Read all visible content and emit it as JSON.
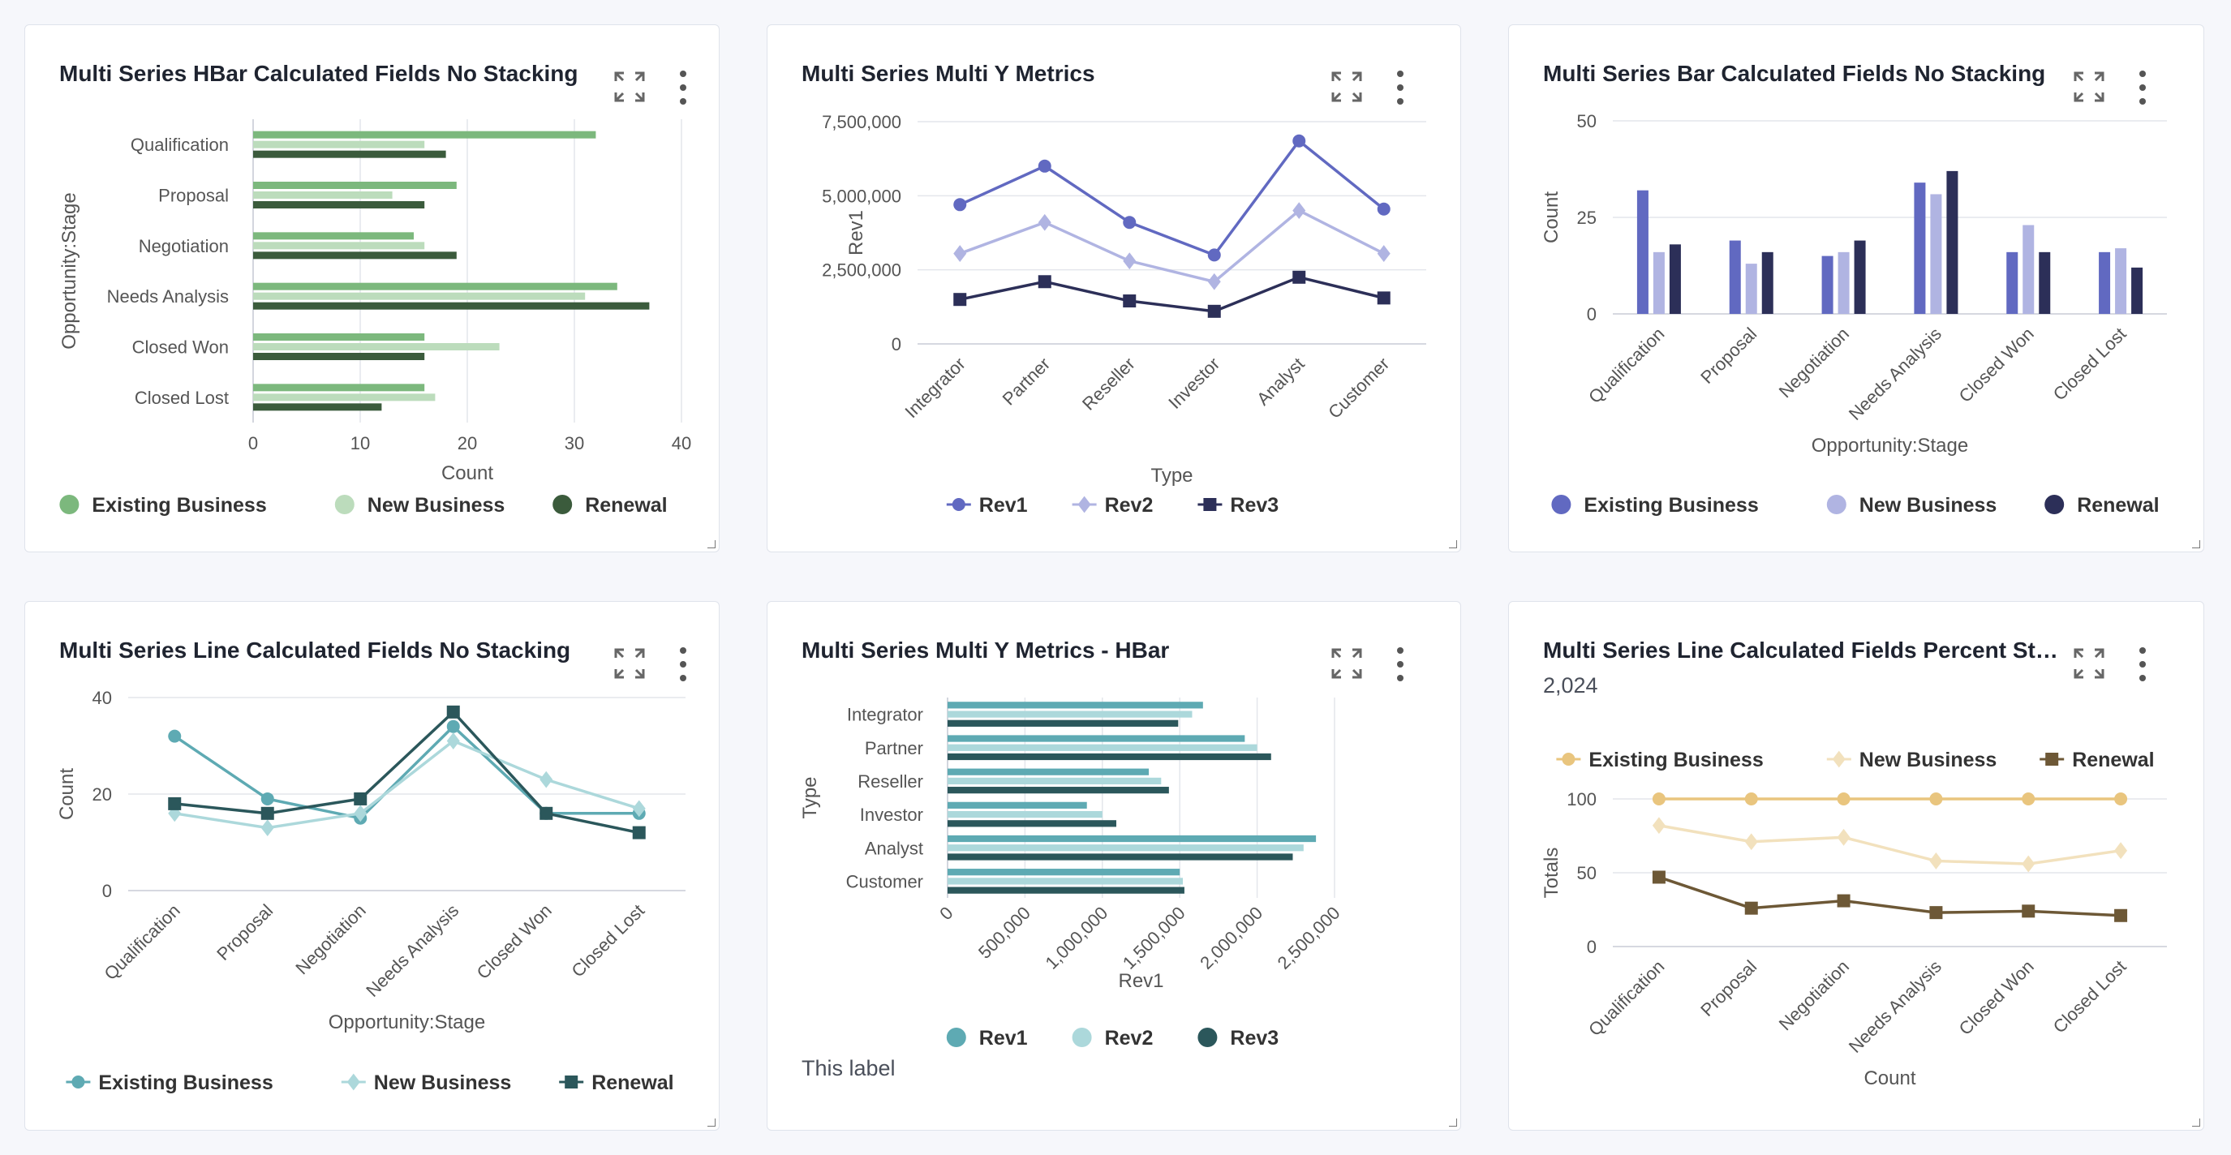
{
  "cards": [
    {
      "title": "Multi Series HBar Calculated Fields No Stacking",
      "chart_data": {
        "type": "bar",
        "orientation": "horizontal",
        "categories": [
          "Qualification",
          "Proposal",
          "Negotiation",
          "Needs Analysis",
          "Closed Won",
          "Closed Lost"
        ],
        "series": [
          {
            "name": "Existing Business",
            "values": [
              32,
              19,
              15,
              34,
              16,
              16
            ]
          },
          {
            "name": "New Business",
            "values": [
              16,
              13,
              16,
              31,
              23,
              17
            ]
          },
          {
            "name": "Renewal",
            "values": [
              18,
              16,
              19,
              37,
              16,
              12
            ]
          }
        ],
        "xlabel": "Count",
        "ylabel": "Opportunity:Stage",
        "xlim": [
          0,
          40
        ],
        "xticks": [
          "0",
          "10",
          "20",
          "30",
          "40"
        ],
        "colors": [
          "#7cb87d",
          "#bcdcbc",
          "#3b5b3c"
        ],
        "legend": "bottom",
        "grid": true
      }
    },
    {
      "title": "Multi Series Multi Y Metrics",
      "chart_data": {
        "type": "line",
        "categories": [
          "Integrator",
          "Partner",
          "Reseller",
          "Investor",
          "Analyst",
          "Customer"
        ],
        "series": [
          {
            "name": "Rev1",
            "marker": "circle",
            "values": [
              4700000,
              6000000,
              4100000,
              3000000,
              6850000,
              4550000
            ]
          },
          {
            "name": "Rev2",
            "marker": "diamond",
            "values": [
              3050000,
              4100000,
              2800000,
              2100000,
              4500000,
              3050000
            ]
          },
          {
            "name": "Rev3",
            "marker": "square",
            "values": [
              1500000,
              2100000,
              1450000,
              1100000,
              2250000,
              1550000
            ]
          }
        ],
        "xlabel": "Type",
        "ylabel": "Rev1",
        "ylim": [
          0,
          7500000
        ],
        "yticks": [
          "0",
          "2,500,000",
          "5,000,000",
          "7,500,000"
        ],
        "colors": [
          "#6169c1",
          "#b0b4e2",
          "#2c2f58"
        ],
        "legend": "bottom",
        "grid": true
      }
    },
    {
      "title": "Multi Series Bar Calculated Fields No Stacking",
      "chart_data": {
        "type": "bar",
        "categories": [
          "Qualification",
          "Proposal",
          "Negotiation",
          "Needs Analysis",
          "Closed Won",
          "Closed Lost"
        ],
        "series": [
          {
            "name": "Existing Business",
            "values": [
              32,
              19,
              15,
              34,
              16,
              16
            ]
          },
          {
            "name": "New Business",
            "values": [
              16,
              13,
              16,
              31,
              23,
              17
            ]
          },
          {
            "name": "Renewal",
            "values": [
              18,
              16,
              19,
              37,
              16,
              12
            ]
          }
        ],
        "xlabel": "Opportunity:Stage",
        "ylabel": "Count",
        "ylim": [
          0,
          50
        ],
        "yticks": [
          "0",
          "25",
          "50"
        ],
        "colors": [
          "#6169c1",
          "#b0b4e2",
          "#2c2f58"
        ],
        "legend": "bottom",
        "grid": true
      }
    },
    {
      "title": "Multi Series Line Calculated Fields No Stacking",
      "chart_data": {
        "type": "line",
        "categories": [
          "Qualification",
          "Proposal",
          "Negotiation",
          "Needs Analysis",
          "Closed Won",
          "Closed Lost"
        ],
        "series": [
          {
            "name": "Existing Business",
            "marker": "circle",
            "values": [
              32,
              19,
              15,
              34,
              16,
              16
            ]
          },
          {
            "name": "New Business",
            "marker": "diamond",
            "values": [
              16,
              13,
              16,
              31,
              23,
              17
            ]
          },
          {
            "name": "Renewal",
            "marker": "square",
            "values": [
              18,
              16,
              19,
              37,
              16,
              12
            ]
          }
        ],
        "xlabel": "Opportunity:Stage",
        "ylabel": "Count",
        "ylim": [
          0,
          40
        ],
        "yticks": [
          "0",
          "20",
          "40"
        ],
        "colors": [
          "#5eaab3",
          "#acd8db",
          "#2b575b"
        ],
        "legend": "bottom",
        "grid": true
      }
    },
    {
      "title": "Multi Series Multi Y Metrics - HBar",
      "note": "This label",
      "chart_data": {
        "type": "bar",
        "orientation": "horizontal",
        "categories": [
          "Integrator",
          "Partner",
          "Reseller",
          "Investor",
          "Analyst",
          "Customer"
        ],
        "series": [
          {
            "name": "Rev1",
            "values": [
              1650000,
              1920000,
              1300000,
              900000,
              2380000,
              1500000
            ]
          },
          {
            "name": "Rev2",
            "values": [
              1580000,
              2000000,
              1380000,
              1000000,
              2300000,
              1520000
            ]
          },
          {
            "name": "Rev3",
            "values": [
              1490000,
              2090000,
              1430000,
              1090000,
              2230000,
              1530000
            ]
          }
        ],
        "xlabel": "Rev1",
        "ylabel": "Type",
        "xlim": [
          0,
          2500000
        ],
        "xticks": [
          "0",
          "500,000",
          "1,000,000",
          "1,500,000",
          "2,000,000",
          "2,500,000"
        ],
        "colors": [
          "#5eaab3",
          "#acd8db",
          "#2b575b"
        ],
        "legend": "bottom",
        "grid": true
      }
    },
    {
      "title": "Multi Series Line Calculated Fields Percent Stac...",
      "subtitle": "2,024",
      "chart_data": {
        "type": "line",
        "categories": [
          "Qualification",
          "Proposal",
          "Negotiation",
          "Needs Analysis",
          "Closed Won",
          "Closed Lost"
        ],
        "series": [
          {
            "name": "Existing Business",
            "marker": "circle",
            "values": [
              100,
              100,
              100,
              100,
              100,
              100
            ]
          },
          {
            "name": "New Business",
            "marker": "diamond",
            "values": [
              82,
              71,
              74,
              58,
              56,
              65
            ]
          },
          {
            "name": "Renewal",
            "marker": "square",
            "values": [
              47,
              26,
              31,
              23,
              24,
              21
            ]
          }
        ],
        "xlabel": "Count",
        "ylabel": "Totals",
        "ylim": [
          0,
          100
        ],
        "yticks": [
          "0",
          "50",
          "100"
        ],
        "colors": [
          "#e9c57e",
          "#f2e1bd",
          "#6d5836"
        ],
        "legend": "top",
        "grid": true
      }
    }
  ]
}
